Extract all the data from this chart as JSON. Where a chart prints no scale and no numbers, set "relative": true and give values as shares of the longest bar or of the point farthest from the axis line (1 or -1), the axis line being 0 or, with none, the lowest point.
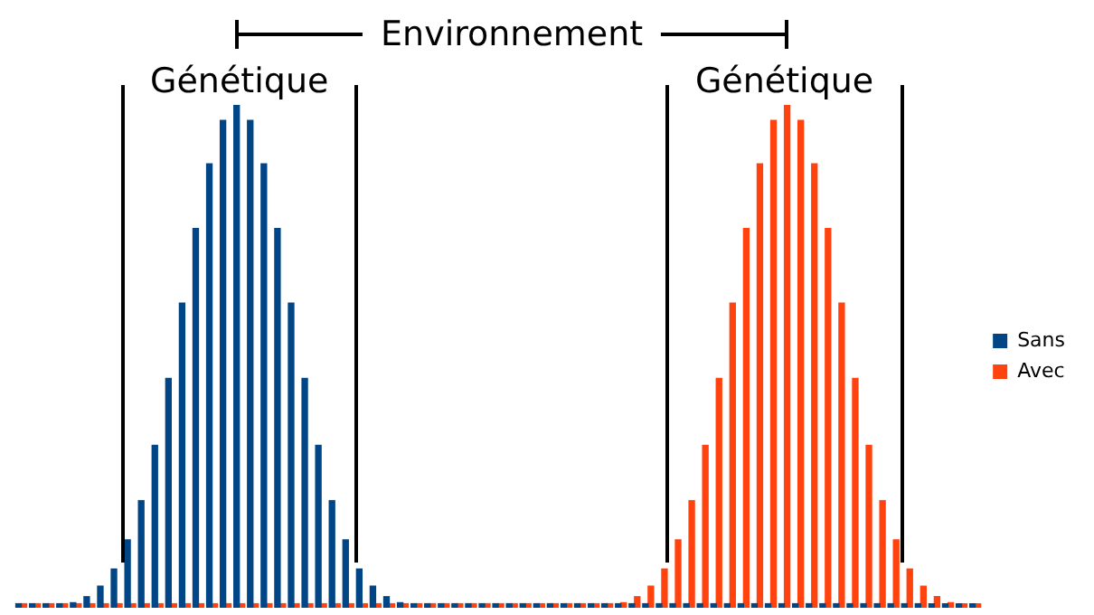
{
  "chart_data": {
    "type": "bar",
    "relative": true,
    "legend": "right",
    "annotations": [
      "Environnement",
      "Génétique",
      "Génétique"
    ],
    "categories": [
      null,
      null,
      null,
      null,
      null,
      null,
      null,
      null,
      null,
      null,
      null,
      null,
      null,
      null,
      null,
      null,
      null,
      null,
      null,
      null,
      null,
      null,
      null,
      null,
      null,
      null,
      null,
      null,
      null,
      null,
      null,
      null,
      null,
      null,
      null,
      null,
      null,
      null,
      null,
      null,
      null,
      null,
      null,
      null,
      null,
      null,
      null,
      null,
      null,
      null,
      null,
      null,
      null,
      null,
      null,
      null,
      null,
      null,
      null,
      null,
      null,
      null,
      null,
      null,
      null,
      null,
      null,
      null,
      null,
      null,
      null
    ],
    "series": [
      {
        "name": "Sans",
        "color": "#004586",
        "values": [
          0.008,
          0.008,
          0.008,
          0.008,
          0.01,
          0.022,
          0.043,
          0.077,
          0.135,
          0.213,
          0.323,
          0.456,
          0.606,
          0.754,
          0.883,
          0.969,
          1,
          0.969,
          0.883,
          0.754,
          0.606,
          0.456,
          0.323,
          0.213,
          0.135,
          0.077,
          0.043,
          0.022,
          0.01,
          0.008,
          0.008,
          0.008,
          0.008,
          0.008,
          0.008,
          0.008,
          0.008,
          0.008,
          0.008,
          0.008,
          0.008,
          0.008,
          0.008,
          0.008,
          0.008,
          0.008,
          0.008,
          0.008,
          0.008,
          0.008,
          0.008,
          0.008,
          0.008,
          0.008,
          0.008,
          0.008,
          0.008,
          0.008,
          0.008,
          0.008,
          0.008,
          0.008,
          0.008,
          0.008,
          0.008,
          0.008,
          0.008,
          0.008,
          0.008,
          0.008,
          0.008
        ]
      },
      {
        "name": "Avec",
        "color": "#ff420e",
        "values": [
          0.008,
          0.008,
          0.008,
          0.008,
          0.008,
          0.008,
          0.008,
          0.008,
          0.008,
          0.008,
          0.008,
          0.008,
          0.008,
          0.008,
          0.008,
          0.008,
          0.008,
          0.008,
          0.008,
          0.008,
          0.008,
          0.008,
          0.008,
          0.008,
          0.008,
          0.008,
          0.008,
          0.008,
          0.008,
          0.008,
          0.008,
          0.008,
          0.008,
          0.008,
          0.008,
          0.008,
          0.008,
          0.008,
          0.008,
          0.008,
          0.008,
          0.008,
          0.008,
          0.008,
          0.01,
          0.022,
          0.043,
          0.077,
          0.135,
          0.213,
          0.323,
          0.456,
          0.606,
          0.754,
          0.883,
          0.969,
          1,
          0.969,
          0.883,
          0.754,
          0.606,
          0.456,
          0.323,
          0.213,
          0.135,
          0.077,
          0.043,
          0.022,
          0.01,
          0.008,
          0.008
        ]
      }
    ]
  }
}
